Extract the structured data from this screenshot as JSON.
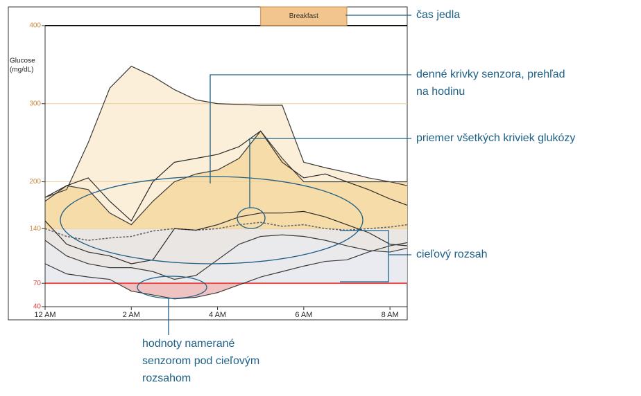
{
  "chart_data": {
    "type": "line",
    "ylabel_lines": [
      "Glucose",
      "(mg/dL)"
    ],
    "x": [
      0,
      0.5,
      1,
      1.5,
      2,
      2.5,
      3,
      3.5,
      4,
      4.5,
      5,
      5.5,
      6,
      6.5,
      7,
      7.5,
      8,
      8.4
    ],
    "xlim": [
      0,
      8.4
    ],
    "xticks": [
      {
        "value": 0,
        "label": "12 AM"
      },
      {
        "value": 2,
        "label": "2 AM"
      },
      {
        "value": 4,
        "label": "4 AM"
      },
      {
        "value": 6,
        "label": "6 AM"
      },
      {
        "value": 8,
        "label": "8 AM"
      }
    ],
    "ylim": [
      40,
      400
    ],
    "yticks": [
      40,
      70,
      140,
      200,
      300,
      400
    ],
    "target_range": [
      70,
      140
    ],
    "events": [
      {
        "label": "Breakfast",
        "start": 5,
        "end": 7
      }
    ],
    "series": [
      {
        "name": "max",
        "color": "#3a3a3a",
        "values": [
          180,
          190,
          250,
          320,
          348,
          335,
          318,
          305,
          300,
          299,
          298,
          298,
          225,
          218,
          212,
          205,
          200,
          195
        ]
      },
      {
        "name": "p75",
        "color": "#3a3a3a",
        "values": [
          175,
          195,
          190,
          160,
          145,
          175,
          200,
          210,
          215,
          230,
          265,
          230,
          200,
          200,
          200,
          200,
          200,
          200
        ]
      },
      {
        "name": "average",
        "color": "#666666",
        "dashed": true,
        "values": [
          140,
          130,
          125,
          128,
          130,
          137,
          140,
          138,
          140,
          145,
          148,
          143,
          145,
          140,
          138,
          140,
          142,
          145
        ]
      },
      {
        "name": "p25",
        "color": "#3a3a3a",
        "values": [
          125,
          105,
          95,
          90,
          90,
          85,
          75,
          80,
          100,
          120,
          130,
          132,
          130,
          125,
          118,
          112,
          110,
          115
        ]
      },
      {
        "name": "min",
        "color": "#3a3a3a",
        "values": [
          95,
          82,
          78,
          75,
          60,
          55,
          50,
          52,
          58,
          68,
          78,
          85,
          92,
          98,
          100,
          110,
          118,
          122
        ]
      },
      {
        "name": "day1",
        "color": "#2a2a2a",
        "values": [
          180,
          195,
          205,
          175,
          150,
          200,
          225,
          230,
          235,
          245,
          265,
          225,
          205,
          210,
          200,
          190,
          178,
          170
        ]
      },
      {
        "name": "day2",
        "color": "#2a2a2a",
        "values": [
          150,
          120,
          110,
          105,
          95,
          100,
          140,
          138,
          145,
          155,
          160,
          160,
          162,
          155,
          145,
          135,
          120,
          118
        ]
      }
    ],
    "annotations": [
      {
        "lines": [
          "čas jedla"
        ]
      },
      {
        "lines": [
          "denné krivky senzora, prehľad",
          "na hodinu"
        ]
      },
      {
        "lines": [
          "priemer všetkých kriviek glukózy"
        ]
      },
      {
        "lines": [
          "cieľový rozsah"
        ]
      },
      {
        "lines": [
          "hodnoty namerané",
          "senzorom pod cieľovým",
          "rozsahom"
        ]
      }
    ]
  }
}
